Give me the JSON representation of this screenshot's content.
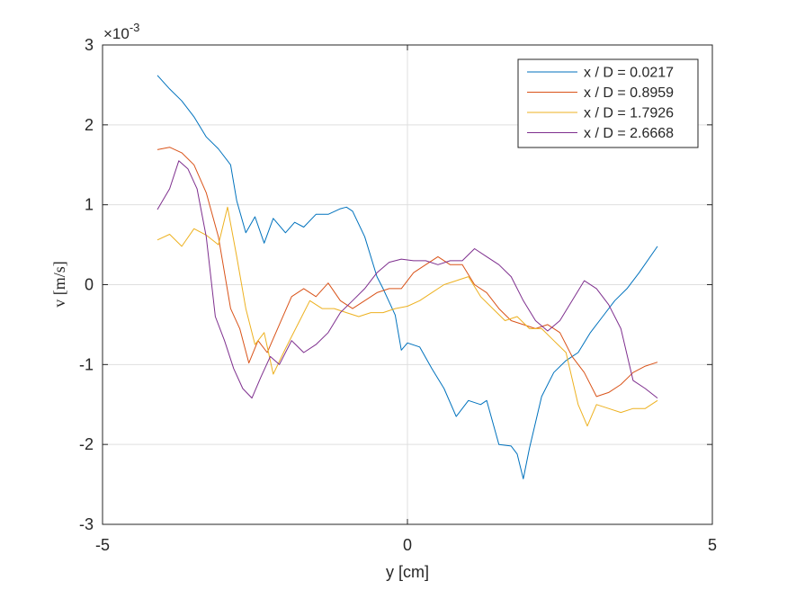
{
  "chart_data": {
    "type": "line",
    "xlabel": "y [cm]",
    "ylabel": "v [m/s]",
    "xlim": [
      -5,
      5
    ],
    "ylim": [
      -3,
      3
    ],
    "xticks": [
      -5,
      0,
      5
    ],
    "yticks": [
      -3,
      -2,
      -1,
      0,
      1,
      2,
      3
    ],
    "xtick_labels": [
      "-5",
      "0",
      "5"
    ],
    "ytick_labels": [
      "-3",
      "-2",
      "-1",
      "0",
      "1",
      "2",
      "3"
    ],
    "y_exponent_base": "×10",
    "y_exponent": "-3",
    "grid": true,
    "legend_position": "top-right",
    "series": [
      {
        "name": "x / D = 0.0217",
        "color": "#0072BD",
        "x": [
          -4.1,
          -3.9,
          -3.7,
          -3.5,
          -3.3,
          -3.1,
          -2.9,
          -2.8,
          -2.65,
          -2.5,
          -2.35,
          -2.2,
          -2.0,
          -1.85,
          -1.7,
          -1.5,
          -1.3,
          -1.1,
          -1.0,
          -0.9,
          -0.7,
          -0.5,
          -0.4,
          -0.2,
          -0.1,
          0.0,
          0.2,
          0.4,
          0.6,
          0.8,
          1.0,
          1.2,
          1.3,
          1.5,
          1.7,
          1.8,
          1.9,
          2.0,
          2.2,
          2.4,
          2.6,
          2.8,
          3.0,
          3.2,
          3.4,
          3.6,
          3.8,
          4.1
        ],
        "values": [
          2.62,
          2.45,
          2.3,
          2.1,
          1.85,
          1.7,
          1.5,
          1.05,
          0.65,
          0.85,
          0.52,
          0.83,
          0.65,
          0.78,
          0.72,
          0.88,
          0.88,
          0.95,
          0.97,
          0.92,
          0.6,
          0.1,
          -0.05,
          -0.38,
          -0.82,
          -0.73,
          -0.78,
          -1.05,
          -1.3,
          -1.65,
          -1.45,
          -1.5,
          -1.45,
          -2.0,
          -2.02,
          -2.12,
          -2.43,
          -2.05,
          -1.4,
          -1.1,
          -0.95,
          -0.85,
          -0.6,
          -0.4,
          -0.2,
          -0.05,
          0.15,
          0.48
        ]
      },
      {
        "name": "x / D = 0.8959",
        "color": "#D95319",
        "x": [
          -4.1,
          -3.9,
          -3.7,
          -3.5,
          -3.3,
          -3.1,
          -2.9,
          -2.75,
          -2.6,
          -2.45,
          -2.3,
          -2.1,
          -1.9,
          -1.7,
          -1.5,
          -1.3,
          -1.1,
          -0.9,
          -0.7,
          -0.5,
          -0.3,
          -0.1,
          0.1,
          0.3,
          0.5,
          0.7,
          0.9,
          1.1,
          1.3,
          1.5,
          1.7,
          1.9,
          2.1,
          2.3,
          2.5,
          2.7,
          2.9,
          3.1,
          3.3,
          3.5,
          3.7,
          3.9,
          4.1
        ],
        "values": [
          1.69,
          1.72,
          1.65,
          1.5,
          1.15,
          0.6,
          -0.3,
          -0.55,
          -0.98,
          -0.7,
          -0.85,
          -0.5,
          -0.15,
          -0.05,
          -0.15,
          0.02,
          -0.2,
          -0.3,
          -0.2,
          -0.1,
          -0.05,
          -0.05,
          0.15,
          0.25,
          0.35,
          0.25,
          0.25,
          0.0,
          -0.1,
          -0.3,
          -0.45,
          -0.5,
          -0.55,
          -0.5,
          -0.6,
          -0.9,
          -1.1,
          -1.4,
          -1.35,
          -1.25,
          -1.1,
          -1.02,
          -0.97
        ]
      },
      {
        "name": "x / D = 1.7926",
        "color": "#EDB120",
        "x": [
          -4.1,
          -3.9,
          -3.7,
          -3.5,
          -3.3,
          -3.1,
          -2.95,
          -2.8,
          -2.65,
          -2.5,
          -2.35,
          -2.2,
          -2.0,
          -1.8,
          -1.6,
          -1.4,
          -1.2,
          -1.0,
          -0.8,
          -0.6,
          -0.4,
          -0.2,
          0.0,
          0.2,
          0.4,
          0.6,
          0.8,
          1.0,
          1.2,
          1.4,
          1.6,
          1.8,
          2.0,
          2.2,
          2.4,
          2.6,
          2.8,
          2.95,
          3.1,
          3.3,
          3.5,
          3.7,
          3.9,
          4.1
        ],
        "values": [
          0.56,
          0.63,
          0.48,
          0.7,
          0.62,
          0.5,
          0.97,
          0.35,
          -0.3,
          -0.75,
          -0.6,
          -1.12,
          -0.8,
          -0.5,
          -0.2,
          -0.3,
          -0.3,
          -0.35,
          -0.4,
          -0.35,
          -0.35,
          -0.3,
          -0.27,
          -0.2,
          -0.1,
          0.0,
          0.05,
          0.1,
          -0.15,
          -0.3,
          -0.45,
          -0.4,
          -0.55,
          -0.55,
          -0.7,
          -0.85,
          -1.5,
          -1.77,
          -1.5,
          -1.55,
          -1.6,
          -1.55,
          -1.55,
          -1.45
        ]
      },
      {
        "name": "x / D = 2.6668",
        "color": "#7E2F8E",
        "x": [
          -4.1,
          -3.9,
          -3.75,
          -3.6,
          -3.45,
          -3.3,
          -3.15,
          -3.0,
          -2.85,
          -2.7,
          -2.55,
          -2.4,
          -2.25,
          -2.1,
          -1.9,
          -1.7,
          -1.5,
          -1.3,
          -1.1,
          -0.9,
          -0.7,
          -0.5,
          -0.3,
          -0.1,
          0.1,
          0.3,
          0.5,
          0.7,
          0.9,
          1.1,
          1.3,
          1.5,
          1.7,
          1.9,
          2.1,
          2.3,
          2.5,
          2.7,
          2.9,
          3.1,
          3.3,
          3.5,
          3.7,
          3.9,
          4.1
        ],
        "values": [
          0.94,
          1.2,
          1.55,
          1.45,
          1.2,
          0.6,
          -0.4,
          -0.7,
          -1.05,
          -1.3,
          -1.42,
          -1.15,
          -0.9,
          -1.0,
          -0.7,
          -0.85,
          -0.75,
          -0.6,
          -0.35,
          -0.2,
          -0.05,
          0.15,
          0.28,
          0.32,
          0.3,
          0.3,
          0.25,
          0.3,
          0.3,
          0.45,
          0.35,
          0.25,
          0.1,
          -0.2,
          -0.45,
          -0.58,
          -0.45,
          -0.2,
          0.05,
          -0.05,
          -0.25,
          -0.55,
          -1.2,
          -1.3,
          -1.42
        ]
      }
    ]
  }
}
